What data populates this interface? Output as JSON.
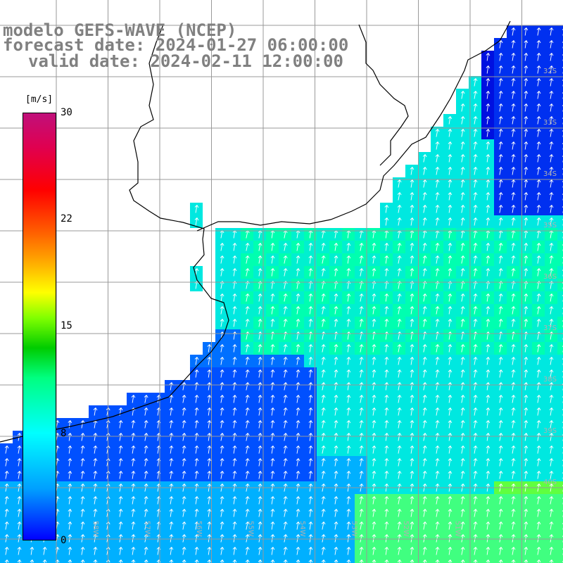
{
  "title": {
    "line1": "modelo GEFS-WAVE (NCEP)",
    "line2": "forecast date: 2024-01-27 06:00:00",
    "line3": "valid date: 2024-02-11 12:00:00"
  },
  "colorbar": {
    "units": "[m/s]",
    "ticks": [
      "30",
      "22",
      "15",
      "8",
      "0"
    ],
    "tick_values": [
      30,
      22,
      15,
      8,
      0
    ]
  },
  "lat_labels": [
    "32S",
    "33S",
    "34S",
    "35S",
    "36S",
    "37S",
    "38S",
    "39S",
    "40S"
  ],
  "lon_labels": [
    "60W",
    "59W",
    "58W",
    "57W",
    "56W",
    "55W",
    "54W",
    "53W",
    "52W",
    "51W"
  ],
  "colors": {
    "land": "#ffffff",
    "coast": "#000000",
    "grid": "#999999",
    "arrow": "#ffffff"
  }
}
